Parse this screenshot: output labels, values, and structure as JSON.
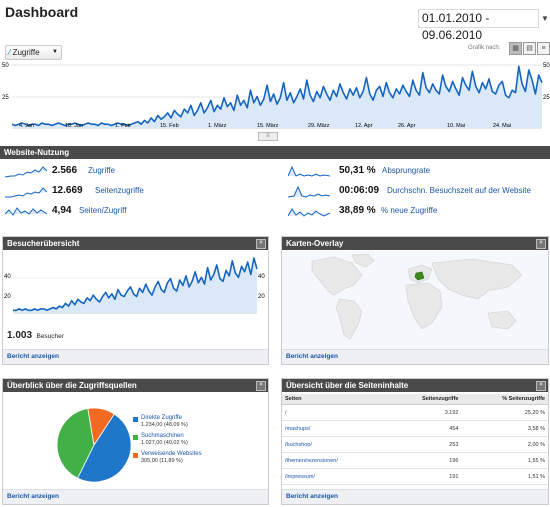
{
  "header": {
    "title": "Dashboard",
    "date_range": "01.01.2010 - 09.06.2010"
  },
  "overview": {
    "metric_selector": "Zugriffe",
    "graph_label": "Grafik nach:",
    "y_labels": [
      "50",
      "25"
    ],
    "y_labels_right": [
      "50",
      "25"
    ],
    "x_labels": [
      "4. Jan",
      "18. Jan",
      "1. Feb",
      "15. Feb",
      "1. März",
      "15. März",
      "29. März",
      "12. Apr",
      "26. Apr",
      "10. Mai",
      "24. Mai"
    ],
    "colors": {
      "line": "#1565c0",
      "fill": "#dbe8f7"
    }
  },
  "chart_data": {
    "type": "area",
    "title": "",
    "x_labels": [
      "4. Jan",
      "18. Jan",
      "1. Feb",
      "15. Feb",
      "1. März",
      "15. März",
      "29. März",
      "12. Apr",
      "26. Apr",
      "10. Mai",
      "24. Mai"
    ],
    "ylim": [
      0,
      50
    ],
    "series": [
      {
        "values": [
          3,
          2,
          3,
          4,
          3,
          2,
          3,
          3,
          2,
          4,
          3,
          3,
          2,
          3,
          4,
          3,
          2,
          3,
          3,
          4,
          3,
          2,
          3,
          4,
          3,
          3,
          2,
          4,
          3,
          3,
          2,
          3,
          4,
          3,
          3,
          2,
          3,
          4,
          5,
          3,
          6,
          4,
          8,
          5,
          10,
          7,
          9,
          12,
          8,
          14,
          11,
          9,
          15,
          12,
          18,
          10,
          14,
          20,
          12,
          16,
          22,
          13,
          18,
          15,
          24,
          17,
          20,
          14,
          26,
          18,
          22,
          16,
          30,
          20,
          25,
          18,
          23,
          34,
          21,
          27,
          19,
          24,
          36,
          22,
          28,
          20,
          25,
          31,
          23,
          38,
          26,
          21,
          29,
          24,
          33,
          27,
          22,
          30,
          25,
          35,
          28,
          23,
          31,
          26,
          32,
          24,
          29,
          40,
          27,
          22,
          30,
          33,
          25,
          36,
          28,
          24,
          31,
          27,
          34,
          29,
          25,
          38,
          30,
          26,
          44,
          32,
          28,
          35,
          30,
          27,
          42,
          33,
          29,
          37,
          31,
          26,
          40,
          34,
          30,
          45,
          33,
          28,
          36,
          31,
          39,
          29,
          27,
          34,
          37,
          26,
          24,
          30,
          28,
          49,
          35,
          29,
          46,
          38,
          27,
          42,
          36
        ]
      }
    ]
  },
  "website_usage": {
    "title": "Website-Nutzung",
    "metrics": [
      {
        "value": "2.566",
        "label": "Zugriffe"
      },
      {
        "value": "12.669",
        "label": "Seitenzugriffe"
      },
      {
        "value": "4,94",
        "label": "Seiten/Zugriff"
      },
      {
        "value": "50,31 %",
        "label": "Absprungrate"
      },
      {
        "value": "00:06:09",
        "label": "Durchschn. Besuchszeit auf der Website"
      },
      {
        "value": "38,89 %",
        "label": "% neue Zugriffe"
      }
    ]
  },
  "visitors": {
    "title": "Besucherübersicht",
    "y_labels": [
      "40",
      "20"
    ],
    "y_labels_right": [
      "40",
      "20"
    ],
    "total": "1.003",
    "total_label": "Besucher",
    "footer": "Bericht anzeigen",
    "chart_data": {
      "type": "line",
      "ylim": [
        0,
        40
      ],
      "values": [
        2,
        2,
        3,
        2,
        3,
        2,
        2,
        3,
        2,
        3,
        3,
        2,
        3,
        4,
        3,
        5,
        4,
        7,
        5,
        9,
        6,
        10,
        8,
        7,
        11,
        9,
        13,
        10,
        8,
        12,
        15,
        11,
        14,
        10,
        17,
        13,
        12,
        16,
        19,
        14,
        12,
        18,
        15,
        21,
        16,
        13,
        19,
        23,
        17,
        15,
        22,
        25,
        18,
        16,
        24,
        20,
        27,
        19,
        23,
        30,
        22,
        26,
        21,
        33,
        24,
        28,
        35,
        25,
        23,
        31,
        27,
        38,
        29,
        26,
        34,
        30,
        37,
        28,
        40,
        32
      ]
    }
  },
  "map": {
    "title": "Karten-Overlay",
    "footer": "Bericht anzeigen"
  },
  "traffic_sources": {
    "title": "Überblick über die Zugriffsquellen",
    "footer": "Bericht anzeigen",
    "chart_data": {
      "type": "pie",
      "slices": [
        {
          "name": "Direkte Zugriffe",
          "value": 1234,
          "percent": 48.09,
          "color": "#1f77c9"
        },
        {
          "name": "Suchmaschinen",
          "value": 1027,
          "percent": 40.02,
          "color": "#43b047"
        },
        {
          "name": "Verweisende Websites",
          "value": 305,
          "percent": 11.89,
          "color": "#f26a22"
        }
      ]
    },
    "legend": [
      {
        "label": "Direkte Zugriffe",
        "detail": "1.234,00 (48,09 %)"
      },
      {
        "label": "Suchmaschinen",
        "detail": "1.027,00 (40,02 %)"
      },
      {
        "label": "Verweisende Websites",
        "detail": "305,00 (11,89 %)"
      }
    ]
  },
  "content": {
    "title": "Übersicht über die Seiteninhalte",
    "footer": "Bericht anzeigen",
    "columns": [
      "Seiten",
      "Seitenzugriffe",
      "% Seitenzugriffe"
    ],
    "rows": [
      {
        "page": "/",
        "views": "3.192",
        "pct": "25,20 %"
      },
      {
        "page": "/mashups/",
        "views": "454",
        "pct": "3,58 %"
      },
      {
        "page": "/buchshop/",
        "views": "253",
        "pct": "2,00 %"
      },
      {
        "page": "/themen/rezensionen/",
        "views": "196",
        "pct": "1,55 %"
      },
      {
        "page": "/impressum/",
        "views": "191",
        "pct": "1,51 %"
      }
    ]
  }
}
